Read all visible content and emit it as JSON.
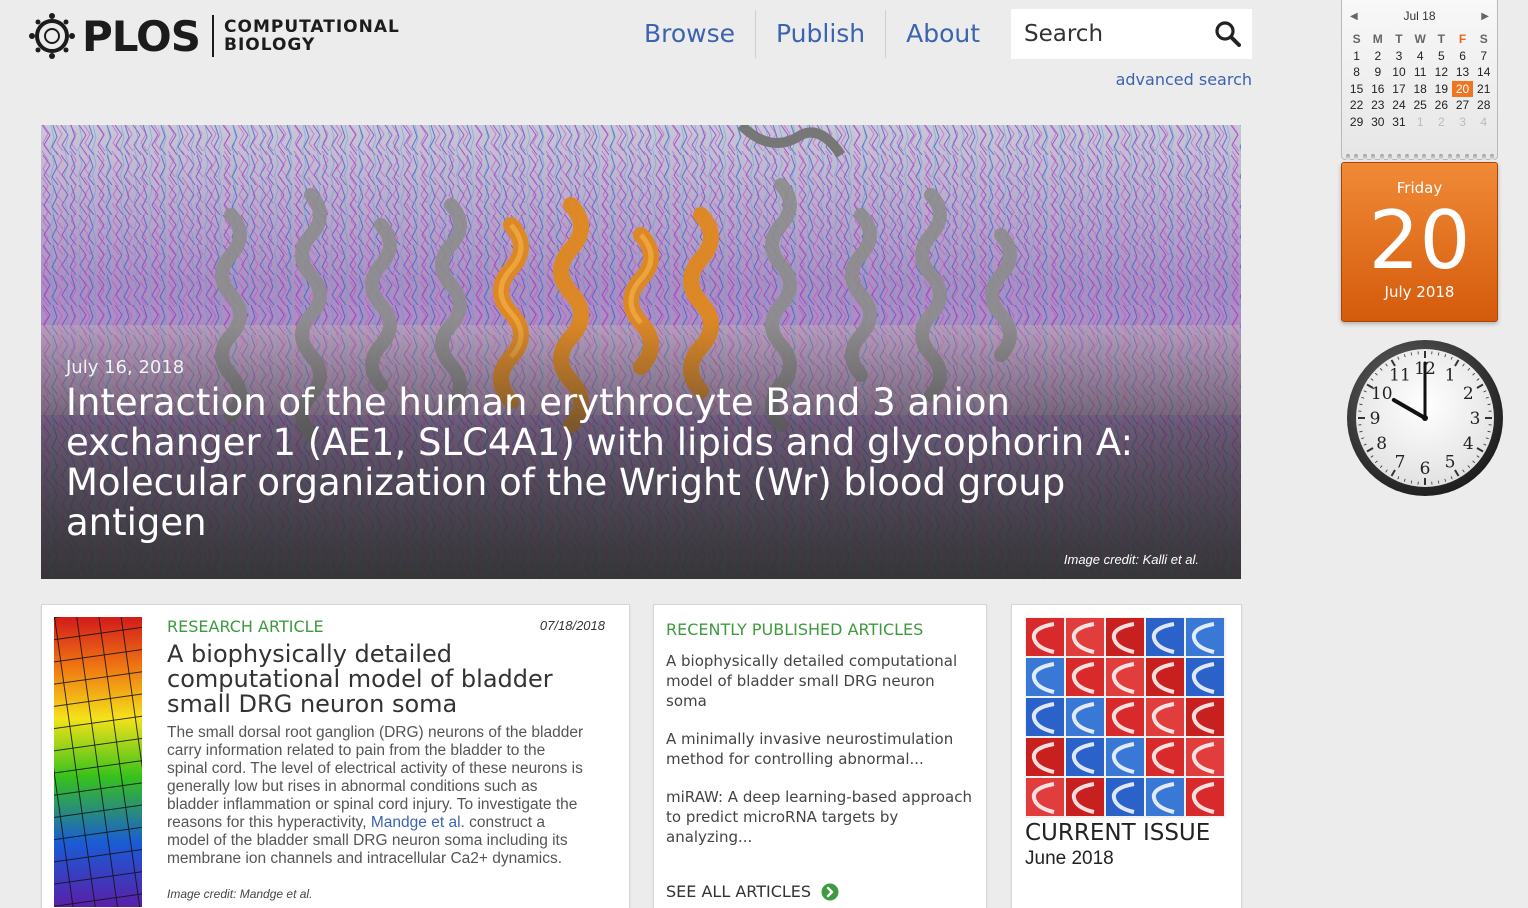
{
  "brand": {
    "name": "PLOS",
    "journal_line1": "COMPUTATIONAL",
    "journal_line2": "BIOLOGY"
  },
  "nav": {
    "items": [
      "Browse",
      "Publish",
      "About"
    ]
  },
  "search": {
    "placeholder": "Search",
    "advanced_label": "advanced search"
  },
  "hero": {
    "date": "July 16, 2018",
    "title": "Interaction of the human erythrocyte Band 3 anion exchanger 1 (AE1, SLC4A1) with lipids and glycophorin A: Molecular organization of the Wright (Wr) blood group antigen",
    "credit": "Image credit: Kalli et al."
  },
  "research_article": {
    "type": "RESEARCH ARTICLE",
    "date": "07/18/2018",
    "title": "A biophysically detailed computational model of bladder small DRG neuron soma",
    "body_before_link": "The small dorsal root ganglion (DRG) neurons of the bladder carry information related to pain from the bladder to the spinal cord. The level of electrical activity of these neurons is generally low but rises in abnormal conditions such as bladder inflammation or spinal cord injury. To investigate the reasons for this hyperactivity, ",
    "body_link": "Mandge et al",
    "body_after_link": ". construct a model of the bladder small DRG neuron soma including its membrane ion channels and intracellular Ca2+ dynamics.",
    "credit": "Image credit: Mandge et al."
  },
  "recent": {
    "heading": "RECENTLY PUBLISHED ARTICLES",
    "items": [
      "A biophysically detailed computational model of bladder small DRG neuron soma",
      "A minimally invasive neurostimulation method for controlling abnormal...",
      "miRAW: A deep learning-based approach to predict microRNA targets by analyzing..."
    ],
    "see_all": "SEE ALL ARTICLES"
  },
  "current_issue": {
    "label": "CURRENT ISSUE",
    "date": "June 2018"
  },
  "gadgets": {
    "mini_calendar": {
      "month_label": "Jul 18",
      "weekdays": [
        "S",
        "M",
        "T",
        "W",
        "T",
        "F",
        "S"
      ],
      "weeks": [
        [
          "1",
          "2",
          "3",
          "4",
          "5",
          "6",
          "7"
        ],
        [
          "8",
          "9",
          "10",
          "11",
          "12",
          "13",
          "14"
        ],
        [
          "15",
          "16",
          "17",
          "18",
          "19",
          "20",
          "21"
        ],
        [
          "22",
          "23",
          "24",
          "25",
          "26",
          "27",
          "28"
        ],
        [
          "29",
          "30",
          "31",
          "1",
          "2",
          "3",
          "4"
        ]
      ],
      "today": "20"
    },
    "big_calendar": {
      "weekday": "Friday",
      "day": "20",
      "month_year": "July 2018"
    },
    "clock": {
      "numerals": [
        "12",
        "1",
        "2",
        "3",
        "4",
        "5",
        "6",
        "7",
        "8",
        "9",
        "10",
        "11"
      ],
      "hour": 10,
      "minute": 0
    }
  },
  "colors": {
    "link_blue": "#3c63af",
    "green_label": "#3d9a3e",
    "calendar_orange": "#ee7622"
  },
  "icons": {
    "search": "magnifier-icon",
    "see_all": "chevron-circle-right-icon"
  }
}
